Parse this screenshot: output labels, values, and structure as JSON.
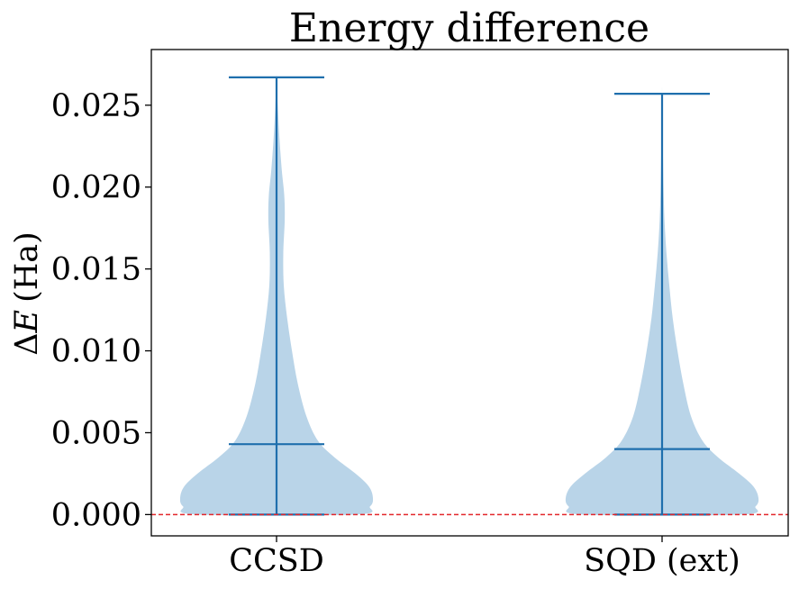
{
  "chart_data": {
    "type": "violin",
    "title": "Energy difference",
    "ylabel_symbol": "ΔE",
    "ylabel_prefix": "Δ",
    "ylabel_var": "E",
    "ylabel_unit": "(Ha)",
    "xlabel": "",
    "ylim": [
      -0.0013,
      0.0284
    ],
    "yticks": [
      0.0,
      0.005,
      0.01,
      0.015,
      0.02,
      0.025
    ],
    "ytick_labels": [
      "0.000",
      "0.005",
      "0.010",
      "0.015",
      "0.020",
      "0.025"
    ],
    "categories": [
      "CCSD",
      "SQD (ext)"
    ],
    "series": [
      {
        "name": "CCSD",
        "min": 0.0,
        "mean": 0.0043,
        "max": 0.0267,
        "density_profile": [
          {
            "y": 0.0,
            "w": 0.82
          },
          {
            "y": 0.0005,
            "w": 0.97
          },
          {
            "y": 0.001,
            "w": 1.0
          },
          {
            "y": 0.0017,
            "w": 0.96
          },
          {
            "y": 0.0025,
            "w": 0.82
          },
          {
            "y": 0.0035,
            "w": 0.6
          },
          {
            "y": 0.0045,
            "w": 0.43
          },
          {
            "y": 0.006,
            "w": 0.31
          },
          {
            "y": 0.008,
            "w": 0.22
          },
          {
            "y": 0.01,
            "w": 0.16
          },
          {
            "y": 0.012,
            "w": 0.11
          },
          {
            "y": 0.014,
            "w": 0.075
          },
          {
            "y": 0.016,
            "w": 0.07
          },
          {
            "y": 0.018,
            "w": 0.085
          },
          {
            "y": 0.0195,
            "w": 0.08
          },
          {
            "y": 0.021,
            "w": 0.055
          },
          {
            "y": 0.023,
            "w": 0.03
          },
          {
            "y": 0.025,
            "w": 0.012
          },
          {
            "y": 0.0267,
            "w": 0.0
          }
        ]
      },
      {
        "name": "SQD (ext)",
        "min": 0.0,
        "mean": 0.004,
        "max": 0.0257,
        "density_profile": [
          {
            "y": 0.0,
            "w": 0.82
          },
          {
            "y": 0.0005,
            "w": 0.97
          },
          {
            "y": 0.001,
            "w": 1.0
          },
          {
            "y": 0.0017,
            "w": 0.95
          },
          {
            "y": 0.0025,
            "w": 0.8
          },
          {
            "y": 0.0035,
            "w": 0.58
          },
          {
            "y": 0.0045,
            "w": 0.42
          },
          {
            "y": 0.006,
            "w": 0.3
          },
          {
            "y": 0.008,
            "w": 0.22
          },
          {
            "y": 0.01,
            "w": 0.16
          },
          {
            "y": 0.012,
            "w": 0.11
          },
          {
            "y": 0.014,
            "w": 0.075
          },
          {
            "y": 0.016,
            "w": 0.045
          },
          {
            "y": 0.018,
            "w": 0.025
          },
          {
            "y": 0.02,
            "w": 0.015
          },
          {
            "y": 0.0225,
            "w": 0.008
          },
          {
            "y": 0.0257,
            "w": 0.0
          }
        ]
      }
    ],
    "reference_line": {
      "y": 0.0,
      "style": "dashed"
    },
    "colors": {
      "violin_fill": "#b9d4e8",
      "stat_lines": "#1f6fad",
      "reference": "#e3262b",
      "axes": "#000000"
    },
    "grid": false
  }
}
